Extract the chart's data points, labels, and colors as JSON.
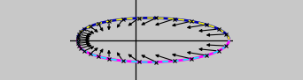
{
  "fig_width": 3.42,
  "fig_height": 0.91,
  "dpi": 100,
  "bg_color": "#c8c8c8",
  "upper_outer_color": "#0000aa",
  "upper_inner_color": "#ffff00",
  "lower_outer_color": "#ff00ff",
  "lower_inner_color": "#00ffff",
  "arrow_color": "#000000",
  "axis_color": "#000000",
  "a": 1.0,
  "b": 0.55,
  "ecc": 0.6,
  "arrow_scale": 0.28,
  "n_arrows": 16
}
